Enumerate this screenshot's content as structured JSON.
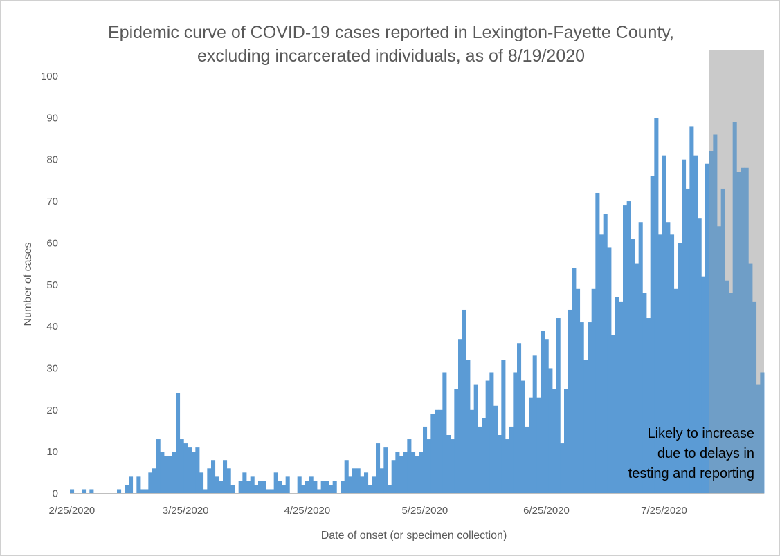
{
  "chart_data": {
    "type": "bar",
    "title_lines": [
      "Epidemic curve of COVID-19 cases reported in Lexington-Fayette County,",
      "excluding incarcerated individuals, as of 8/19/2020"
    ],
    "xlabel": "Date of onset (or specimen collection)",
    "ylabel": "Number of cases",
    "ylim": [
      0,
      100
    ],
    "yticks": [
      0,
      10,
      20,
      30,
      40,
      50,
      60,
      70,
      80,
      90,
      100
    ],
    "grid": false,
    "x_start": "2020-02-25",
    "x_end": "2020-08-19",
    "xtick_labels": [
      "2/25/2020",
      "3/25/2020",
      "4/25/2020",
      "5/25/2020",
      "6/25/2020",
      "7/25/2020"
    ],
    "bar_color": "#5b9bd5",
    "shaded_color": "#d9d9d9",
    "shaded_region": {
      "start": "2020-08-06",
      "end": "2020-08-19"
    },
    "annotation": [
      "Likely to increase",
      "due to delays in",
      "testing and reporting"
    ],
    "values": [
      1,
      0,
      0,
      1,
      0,
      1,
      0,
      0,
      0,
      0,
      0,
      0,
      1,
      0,
      2,
      4,
      0,
      4,
      1,
      1,
      5,
      6,
      13,
      10,
      9,
      9,
      10,
      24,
      13,
      12,
      11,
      10,
      11,
      5,
      1,
      6,
      8,
      4,
      3,
      8,
      6,
      2,
      0,
      3,
      5,
      3,
      4,
      2,
      3,
      3,
      1,
      1,
      5,
      3,
      2,
      4,
      0,
      0,
      4,
      2,
      3,
      4,
      3,
      1,
      3,
      3,
      2,
      3,
      0,
      3,
      8,
      4,
      6,
      6,
      4,
      5,
      2,
      4,
      12,
      6,
      11,
      2,
      8,
      10,
      9,
      10,
      13,
      10,
      9,
      10,
      16,
      13,
      19,
      20,
      20,
      29,
      14,
      13,
      25,
      37,
      44,
      32,
      20,
      26,
      16,
      18,
      27,
      29,
      21,
      14,
      32,
      13,
      16,
      29,
      36,
      27,
      16,
      23,
      33,
      23,
      39,
      37,
      30,
      25,
      42,
      12,
      25,
      44,
      54,
      49,
      41,
      32,
      41,
      49,
      72,
      62,
      67,
      59,
      38,
      47,
      46,
      69,
      70,
      61,
      55,
      65,
      48,
      42,
      76,
      90,
      62,
      81,
      65,
      62,
      49,
      60,
      80,
      73,
      88,
      81,
      66,
      52,
      79,
      82,
      86,
      64,
      73,
      51,
      48,
      89,
      77,
      78,
      78,
      55,
      46,
      26,
      29
    ]
  }
}
